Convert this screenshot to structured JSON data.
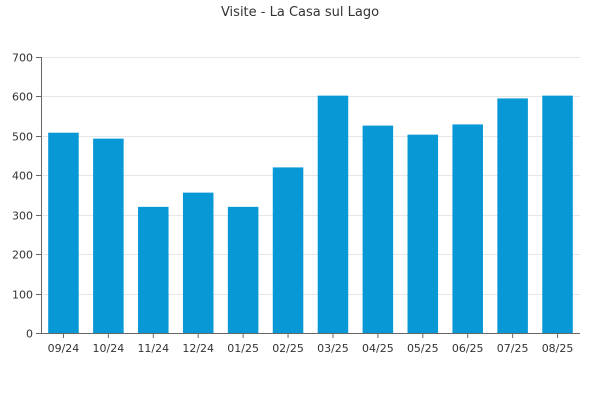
{
  "chart_data": {
    "type": "bar",
    "title": "Visite - La Casa sul Lago",
    "xlabel": "",
    "ylabel": "",
    "categories": [
      "09/24",
      "10/24",
      "11/24",
      "12/24",
      "01/25",
      "02/25",
      "03/25",
      "04/25",
      "05/25",
      "06/25",
      "07/25",
      "08/25"
    ],
    "values": [
      508,
      493,
      320,
      356,
      320,
      420,
      602,
      526,
      503,
      529,
      595,
      602
    ],
    "ylim": [
      0,
      700
    ],
    "yticks": [
      0,
      100,
      200,
      300,
      400,
      500,
      600,
      700
    ],
    "grid": true,
    "legend": "none",
    "bar_color": "#0998d6"
  }
}
